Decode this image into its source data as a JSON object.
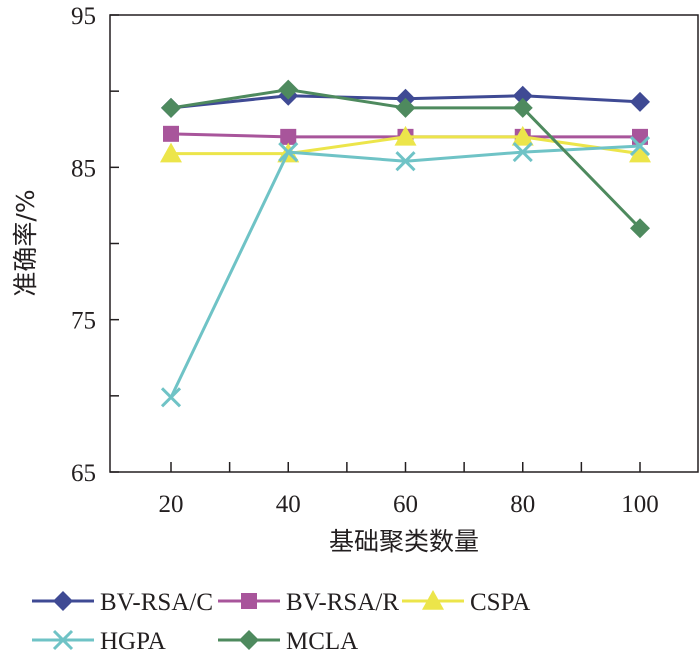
{
  "chart_data": {
    "type": "line",
    "title": "",
    "xlabel": "基础聚类数量",
    "ylabel": "准确率/%",
    "x": [
      20,
      40,
      60,
      80,
      100
    ],
    "xlim": [
      10,
      110
    ],
    "ylim": [
      65,
      95
    ],
    "x_ticks": [
      "20",
      "40",
      "60",
      "80",
      "100"
    ],
    "y_ticks": [
      "95",
      "85",
      "75",
      "65"
    ],
    "y_tick_values": [
      95,
      85,
      75,
      65
    ],
    "y_minor_tick_values": [
      90,
      80,
      70
    ],
    "x_minor_tick_values": [
      30,
      50,
      70,
      90
    ],
    "grid": false,
    "legend_position": "bottom",
    "series": [
      {
        "name": "BV-RSA/C",
        "marker": "diamond",
        "color": "#3f4a94",
        "values": [
          88.9,
          89.7,
          89.5,
          89.7,
          89.3
        ]
      },
      {
        "name": "BV-RSA/R",
        "marker": "square",
        "color": "#a8559b",
        "values": [
          87.2,
          87.0,
          87.0,
          87.0,
          87.0
        ]
      },
      {
        "name": "CSPA",
        "marker": "triangle",
        "color": "#ece54a",
        "values": [
          85.9,
          85.9,
          87.0,
          87.0,
          85.9
        ]
      },
      {
        "name": "HGPA",
        "marker": "x",
        "color": "#6fc3c6",
        "values": [
          69.9,
          86.0,
          85.4,
          86.0,
          86.4
        ]
      },
      {
        "name": "MCLA",
        "marker": "diamond",
        "color": "#4e8a5e",
        "values": [
          88.9,
          90.1,
          88.9,
          88.9,
          81.0
        ]
      }
    ]
  }
}
